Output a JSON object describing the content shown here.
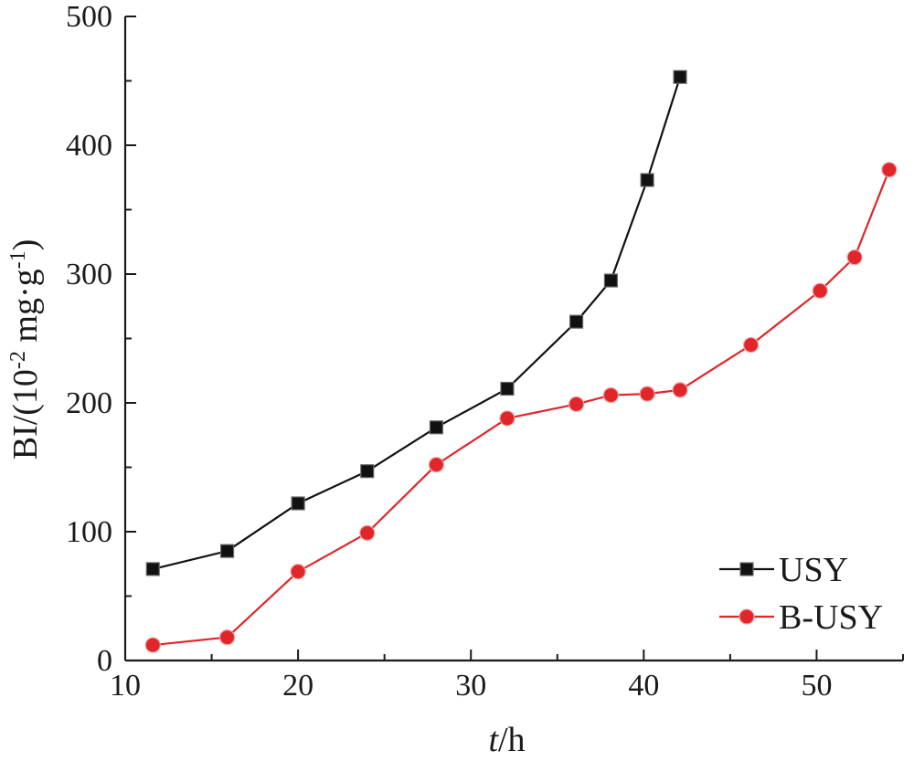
{
  "chart_data": {
    "type": "line",
    "xlabel": {
      "italic": "t",
      "rest": "/h"
    },
    "ylabel": {
      "base": "BI/(10",
      "sup1": "-2",
      "mid": " mg·g",
      "sup2": "-1",
      "end": ")"
    },
    "xlim": [
      10,
      55
    ],
    "ylim": [
      0,
      500
    ],
    "xticks": [
      10,
      20,
      30,
      40,
      50
    ],
    "yticks": [
      0,
      100,
      200,
      300,
      400,
      500
    ],
    "legend_position": "bottom-right",
    "series": [
      {
        "name": "USY",
        "color": "#111111",
        "marker": "square",
        "x": [
          11.6,
          15.9,
          20.0,
          24.0,
          28.0,
          32.1,
          36.1,
          38.1,
          40.2,
          42.1
        ],
        "y": [
          71,
          85,
          122,
          147,
          181,
          211,
          263,
          295,
          373,
          453
        ]
      },
      {
        "name": "B-USY",
        "color": "#e0262a",
        "marker": "circle",
        "x": [
          11.6,
          15.9,
          20.0,
          24.0,
          28.0,
          32.1,
          36.1,
          38.1,
          40.2,
          42.1,
          46.2,
          50.2,
          52.2,
          54.2
        ],
        "y": [
          12,
          18,
          69,
          99,
          152,
          188,
          199,
          206,
          207,
          210,
          245,
          287,
          313,
          381
        ]
      }
    ]
  }
}
